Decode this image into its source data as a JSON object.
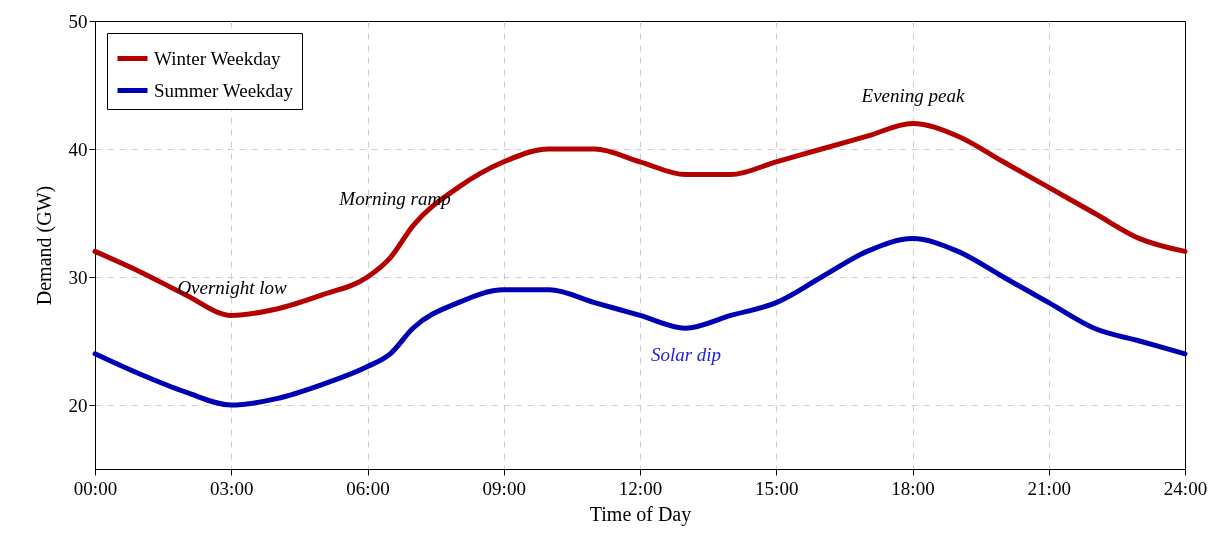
{
  "chart_data": {
    "type": "line",
    "xlabel": "Time of Day",
    "ylabel": "Demand (GW)",
    "xlim": [
      0,
      24
    ],
    "xticks": [
      {
        "value": 0,
        "label": "00:00"
      },
      {
        "value": 3,
        "label": "03:00"
      },
      {
        "value": 6,
        "label": "06:00"
      },
      {
        "value": 9,
        "label": "09:00"
      },
      {
        "value": 12,
        "label": "12:00"
      },
      {
        "value": 15,
        "label": "15:00"
      },
      {
        "value": 18,
        "label": "18:00"
      },
      {
        "value": 21,
        "label": "21:00"
      },
      {
        "value": 24,
        "label": "24:00"
      }
    ],
    "ylim": [
      15,
      50
    ],
    "yticks": [
      20,
      30,
      40,
      50
    ],
    "x": [
      0,
      1,
      2,
      3,
      4,
      5,
      6,
      6.5,
      7,
      8,
      9,
      10,
      11,
      12,
      13,
      14,
      15,
      16,
      17,
      18,
      19,
      20,
      21,
      22,
      23,
      24
    ],
    "series": [
      {
        "name": "Winter Weekday",
        "color": "#b30000",
        "values": [
          32,
          30.4,
          28.6,
          27,
          27.5,
          28.6,
          30,
          31.5,
          34,
          37,
          39,
          40,
          40,
          39,
          38,
          38,
          39,
          40,
          41,
          42,
          41,
          39,
          37,
          35,
          33,
          32
        ]
      },
      {
        "name": "Summer Weekday",
        "color": "#0000b3",
        "values": [
          24,
          22.4,
          21,
          20,
          20.5,
          21.6,
          23,
          24,
          26,
          28,
          29,
          29,
          28,
          27,
          26,
          27,
          28,
          30,
          32,
          33,
          32,
          30,
          28,
          26,
          25,
          24
        ]
      }
    ],
    "annotations": [
      "Overnight low",
      "Morning ramp",
      "Evening peak",
      "Solar dip"
    ],
    "grid": true,
    "legend": "top left",
    "marker": "none",
    "line_style": "solid"
  }
}
